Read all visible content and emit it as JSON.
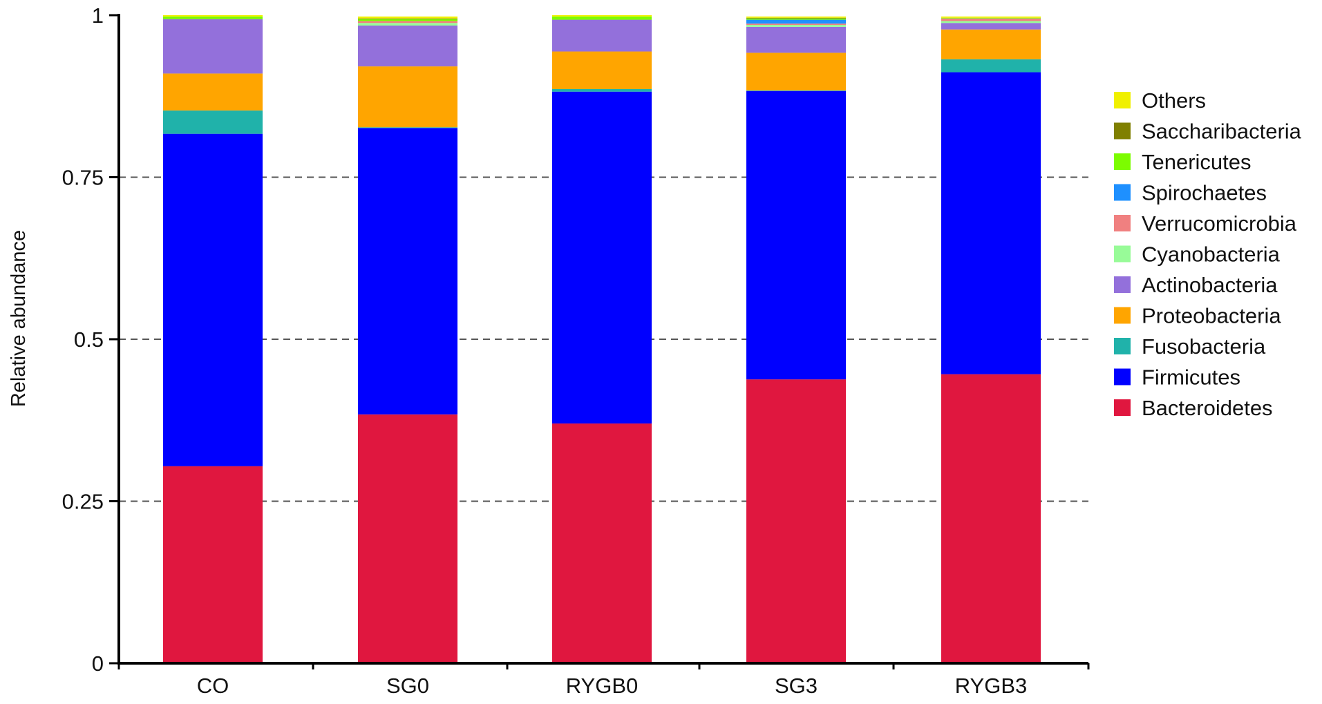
{
  "chart_data": {
    "type": "bar",
    "stacked": true,
    "title": "",
    "xlabel": "",
    "ylabel": "Relative abundance",
    "ylim": [
      0,
      1
    ],
    "yticks": [
      0,
      0.25,
      0.5,
      0.75,
      1
    ],
    "ytick_labels": [
      "0",
      "0.25",
      "0.5",
      "0.75",
      "1"
    ],
    "grid": "horizontal dashed",
    "legend_position": "right",
    "categories": [
      "CO",
      "SG0",
      "RYGB0",
      "SG3",
      "RYGB3"
    ],
    "series": [
      {
        "name": "Bacteroidetes",
        "color": "#e0173f",
        "values": [
          0.304,
          0.384,
          0.37,
          0.438,
          0.446
        ]
      },
      {
        "name": "Firmicutes",
        "color": "#0000ff",
        "values": [
          0.513,
          0.442,
          0.512,
          0.445,
          0.466
        ]
      },
      {
        "name": "Fusobacteria",
        "color": "#20b2aa",
        "values": [
          0.036,
          0.001,
          0.004,
          0.001,
          0.02
        ]
      },
      {
        "name": "Proteobacteria",
        "color": "#ffa500",
        "values": [
          0.057,
          0.094,
          0.058,
          0.058,
          0.046
        ]
      },
      {
        "name": "Actinobacteria",
        "color": "#9370db",
        "values": [
          0.084,
          0.063,
          0.049,
          0.04,
          0.01
        ]
      },
      {
        "name": "Cyanobacteria",
        "color": "#98fb98",
        "values": [
          0.0,
          0.004,
          0.0,
          0.003,
          0.003
        ]
      },
      {
        "name": "Verrucomicrobia",
        "color": "#f08080",
        "values": [
          0.0,
          0.003,
          0.0,
          0.002,
          0.004
        ]
      },
      {
        "name": "Spirochaetes",
        "color": "#1e90ff",
        "values": [
          0.0,
          0.0,
          0.0,
          0.006,
          0.0
        ]
      },
      {
        "name": "Tenericutes",
        "color": "#7cfc00",
        "values": [
          0.004,
          0.003,
          0.005,
          0.002,
          0.001
        ]
      },
      {
        "name": "Saccharibacteria",
        "color": "#808000",
        "values": [
          0.0,
          0.001,
          0.0,
          0.001,
          0.0
        ]
      },
      {
        "name": "Others",
        "color": "#f0f000",
        "values": [
          0.002,
          0.003,
          0.002,
          0.002,
          0.002
        ]
      }
    ],
    "legend_order": [
      "Others",
      "Saccharibacteria",
      "Tenericutes",
      "Spirochaetes",
      "Verrucomicrobia",
      "Cyanobacteria",
      "Actinobacteria",
      "Proteobacteria",
      "Fusobacteria",
      "Firmicutes",
      "Bacteroidetes"
    ]
  }
}
